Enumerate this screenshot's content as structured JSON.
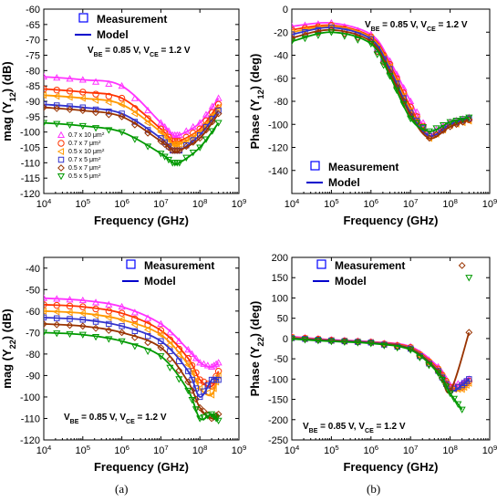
{
  "captions": [
    "(a)",
    "(b)"
  ],
  "colors": {
    "0.7 x 10": "#ff33ff",
    "0.7 x 7": "#ff3300",
    "0.5 x 10": "#ff9900",
    "0.7 x 5": "#3333cc",
    "0.5 x 7": "#993300",
    "0.5 x 5": "#009900",
    "measurement_legend": "#0000ff",
    "model_legend": "#0000cc"
  },
  "chart_data": [
    {
      "id": "mag_y12",
      "type": "line",
      "ylabel_main": "mag (Y",
      "ylabel_sub": "12",
      "ylabel_tail": ") (dB)",
      "xlabel": "Frequency (GHz)",
      "xscale": "log",
      "xlim": [
        10000,
        1000000000
      ],
      "ylim": [
        -120,
        -60
      ],
      "yticks": [
        -60,
        -65,
        -70,
        -75,
        -80,
        -85,
        -90,
        -95,
        -100,
        -105,
        -110,
        -115,
        -120
      ],
      "xticks": [
        {
          "base": "10",
          "exp": "4"
        },
        {
          "base": "10",
          "exp": "5"
        },
        {
          "base": "10",
          "exp": "6"
        },
        {
          "base": "10",
          "exp": "7"
        },
        {
          "base": "10",
          "exp": "8"
        },
        {
          "base": "10",
          "exp": "9"
        }
      ],
      "legend": {
        "measurement": "Measurement",
        "model": "Model"
      },
      "annotation": {
        "a": "V",
        "a_sub": "BE",
        "b": " = 0.85 V, V",
        "b_sub": "CE",
        "c": " = 1.2 V"
      },
      "series_legend": [
        {
          "label": "0.7 x 10 μm",
          "sup": "2"
        },
        {
          "label": "0.7 x 7 μm",
          "sup": "2"
        },
        {
          "label": "0.5 x 10 μm",
          "sup": "2"
        },
        {
          "label": "0.7 x 5 μm",
          "sup": "2"
        },
        {
          "label": "0.5 x 7 μm",
          "sup": "2"
        },
        {
          "label": "0.5 x 5 μm",
          "sup": "2"
        }
      ],
      "series": [
        {
          "label": "0.7 x 10 μm²",
          "marker": "triangle-up",
          "x": [
            10000,
            100000,
            1000000,
            10000000,
            20000000,
            30000000,
            100000000,
            300000000
          ],
          "y": [
            -82,
            -83,
            -85,
            -97,
            -101,
            -101,
            -97,
            -89
          ]
        },
        {
          "label": "0.7 x 7 μm²",
          "marker": "circle",
          "x": [
            10000,
            100000,
            1000000,
            10000000,
            20000000,
            30000000,
            100000000,
            300000000
          ],
          "y": [
            -86,
            -87,
            -89,
            -99,
            -103,
            -103,
            -99,
            -91
          ]
        },
        {
          "label": "0.5 x 10 μm²",
          "marker": "triangle-left",
          "x": [
            10000,
            100000,
            1000000,
            10000000,
            20000000,
            30000000,
            100000000,
            300000000
          ],
          "y": [
            -88,
            -89,
            -91,
            -100,
            -104,
            -104,
            -100,
            -92
          ]
        },
        {
          "label": "0.7 x 5 μm²",
          "marker": "square",
          "x": [
            10000,
            100000,
            1000000,
            10000000,
            20000000,
            30000000,
            100000000,
            300000000
          ],
          "y": [
            -91,
            -92,
            -94,
            -102,
            -106,
            -106,
            -101,
            -93
          ]
        },
        {
          "label": "0.5 x 7 μm²",
          "marker": "diamond",
          "x": [
            10000,
            100000,
            1000000,
            10000000,
            20000000,
            30000000,
            100000000,
            300000000
          ],
          "y": [
            -92,
            -93,
            -95,
            -103,
            -106,
            -106,
            -102,
            -94
          ]
        },
        {
          "label": "0.5 x 5 μm²",
          "marker": "triangle-down",
          "x": [
            10000,
            100000,
            1000000,
            10000000,
            20000000,
            30000000,
            100000000,
            300000000
          ],
          "y": [
            -97,
            -98,
            -100,
            -107,
            -110,
            -110,
            -105,
            -97
          ]
        }
      ]
    },
    {
      "id": "phase_y12",
      "type": "line",
      "ylabel_main": "Phase (Y",
      "ylabel_sub": "12",
      "ylabel_tail": ") (deg)",
      "xlabel": "Frequency (GHz)",
      "xscale": "log",
      "xlim": [
        10000,
        1000000000
      ],
      "ylim": [
        -160,
        0
      ],
      "yticks": [
        0,
        -20,
        -40,
        -60,
        -80,
        -100,
        -120,
        -140
      ],
      "xticks": [
        {
          "base": "10",
          "exp": "4"
        },
        {
          "base": "10",
          "exp": "5"
        },
        {
          "base": "10",
          "exp": "6"
        },
        {
          "base": "10",
          "exp": "7"
        },
        {
          "base": "10",
          "exp": "8"
        },
        {
          "base": "10",
          "exp": "9"
        }
      ],
      "legend": {
        "measurement": "Measurement",
        "model": "Model"
      },
      "annotation": {
        "a": "V",
        "a_sub": "BE",
        "b": " = 0.85 V, V",
        "b_sub": "CE",
        "c": " = 1.2 V"
      },
      "series": [
        {
          "label": "0.7 x 10 μm²",
          "marker": "triangle-up",
          "x": [
            10000,
            100000,
            1000000,
            3000000,
            10000000,
            30000000,
            100000000,
            300000000
          ],
          "y": [
            -15,
            -12,
            -22,
            -45,
            -80,
            -108,
            -98,
            -94
          ]
        },
        {
          "label": "0.7 x 7 μm²",
          "marker": "circle",
          "x": [
            10000,
            100000,
            1000000,
            3000000,
            10000000,
            30000000,
            100000000,
            300000000
          ],
          "y": [
            -18,
            -14,
            -24,
            -48,
            -85,
            -110,
            -100,
            -96
          ]
        },
        {
          "label": "0.5 x 10 μm²",
          "marker": "triangle-left",
          "x": [
            10000,
            100000,
            1000000,
            3000000,
            10000000,
            30000000,
            100000000,
            300000000
          ],
          "y": [
            -20,
            -15,
            -25,
            -50,
            -88,
            -112,
            -101,
            -97
          ]
        },
        {
          "label": "0.7 x 5 μm²",
          "marker": "square",
          "x": [
            10000,
            100000,
            1000000,
            3000000,
            10000000,
            30000000,
            100000000,
            300000000
          ],
          "y": [
            -22,
            -16,
            -26,
            -52,
            -90,
            -110,
            -100,
            -95
          ]
        },
        {
          "label": "0.5 x 7 μm²",
          "marker": "diamond",
          "x": [
            10000,
            100000,
            1000000,
            3000000,
            10000000,
            30000000,
            100000000,
            300000000
          ],
          "y": [
            -25,
            -18,
            -28,
            -55,
            -92,
            -112,
            -102,
            -96
          ]
        },
        {
          "label": "0.5 x 5 μm²",
          "marker": "triangle-down",
          "x": [
            10000,
            100000,
            1000000,
            3000000,
            10000000,
            30000000,
            100000000,
            300000000
          ],
          "y": [
            -28,
            -20,
            -30,
            -58,
            -95,
            -106,
            -98,
            -94
          ]
        }
      ]
    },
    {
      "id": "mag_y22",
      "type": "line",
      "ylabel_main": "mag (Y",
      "ylabel_sub": "22",
      "ylabel_tail": ") (dB)",
      "xlabel": "Frequency (GHz)",
      "xscale": "log",
      "xlim": [
        10000,
        1000000000
      ],
      "ylim": [
        -120,
        -35
      ],
      "yticks": [
        -40,
        -50,
        -60,
        -70,
        -80,
        -90,
        -100,
        -110,
        -120
      ],
      "xticks": [
        {
          "base": "10",
          "exp": "4"
        },
        {
          "base": "10",
          "exp": "5"
        },
        {
          "base": "10",
          "exp": "6"
        },
        {
          "base": "10",
          "exp": "7"
        },
        {
          "base": "10",
          "exp": "8"
        },
        {
          "base": "10",
          "exp": "9"
        }
      ],
      "legend": {
        "measurement": "Measurement",
        "model": "Model"
      },
      "annotation": {
        "a": "V",
        "a_sub": "BE",
        "b": " = 0.85 V, V",
        "b_sub": "CE",
        "c": " = 1.2 V"
      },
      "series": [
        {
          "label": "0.7 x 10 μm²",
          "marker": "triangle-up",
          "x": [
            10000,
            100000,
            1000000,
            10000000,
            50000000,
            100000000,
            200000000,
            300000000
          ],
          "y": [
            -54,
            -55,
            -58,
            -66,
            -78,
            -84,
            -86,
            -84
          ]
        },
        {
          "label": "0.7 x 7 μm²",
          "marker": "circle",
          "x": [
            10000,
            100000,
            1000000,
            10000000,
            50000000,
            100000000,
            200000000,
            300000000
          ],
          "y": [
            -57,
            -58,
            -61,
            -69,
            -82,
            -92,
            -95,
            -88
          ]
        },
        {
          "label": "0.5 x 10 μm²",
          "marker": "triangle-left",
          "x": [
            10000,
            100000,
            1000000,
            10000000,
            50000000,
            100000000,
            200000000,
            300000000
          ],
          "y": [
            -60,
            -61,
            -64,
            -71,
            -85,
            -96,
            -99,
            -90
          ]
        },
        {
          "label": "0.7 x 5 μm²",
          "marker": "square",
          "x": [
            10000,
            100000,
            1000000,
            10000000,
            50000000,
            100000000,
            200000000,
            300000000
          ],
          "y": [
            -63,
            -64,
            -67,
            -74,
            -88,
            -100,
            -92,
            -92
          ]
        },
        {
          "label": "0.5 x 7 μm²",
          "marker": "diamond",
          "x": [
            10000,
            100000,
            1000000,
            10000000,
            50000000,
            100000000,
            200000000,
            300000000
          ],
          "y": [
            -66,
            -67,
            -70,
            -77,
            -93,
            -105,
            -110,
            -108
          ]
        },
        {
          "label": "0.5 x 5 μm²",
          "marker": "triangle-down",
          "x": [
            10000,
            100000,
            1000000,
            10000000,
            50000000,
            100000000,
            200000000,
            300000000
          ],
          "y": [
            -70,
            -71,
            -74,
            -81,
            -97,
            -110,
            -108,
            -111
          ]
        }
      ]
    },
    {
      "id": "phase_y22",
      "type": "line",
      "ylabel_main": "Phase (Y",
      "ylabel_sub": "22",
      "ylabel_tail": ") (deg)",
      "xlabel": "Frequency (GHz)",
      "xscale": "log",
      "xlim": [
        10000,
        1000000000
      ],
      "ylim": [
        -250,
        200
      ],
      "yticks": [
        200,
        150,
        100,
        50,
        0,
        -50,
        -100,
        -150,
        -200,
        -250
      ],
      "xticks": [
        {
          "base": "10",
          "exp": "4"
        },
        {
          "base": "10",
          "exp": "5"
        },
        {
          "base": "10",
          "exp": "6"
        },
        {
          "base": "10",
          "exp": "7"
        },
        {
          "base": "10",
          "exp": "8"
        },
        {
          "base": "10",
          "exp": "9"
        }
      ],
      "legend": {
        "measurement": "Measurement",
        "model": "Model"
      },
      "annotation": {
        "a": "V",
        "a_sub": "BE",
        "b": " = 0.85 V, V",
        "b_sub": "CE",
        "c": " = 1.2 V"
      },
      "series": [
        {
          "label": "0.7 x 10 μm²",
          "marker": "triangle-up",
          "x": [
            10000,
            100000,
            1000000,
            10000000,
            50000000,
            100000000,
            200000000,
            300000000
          ],
          "y": [
            5,
            -3,
            -8,
            -20,
            -70,
            -115,
            -110,
            -100
          ]
        },
        {
          "label": "0.7 x 7 μm²",
          "marker": "circle",
          "x": [
            10000,
            100000,
            1000000,
            10000000,
            50000000,
            100000000,
            200000000,
            300000000
          ],
          "y": [
            3,
            -4,
            -9,
            -22,
            -75,
            -120,
            -120,
            -105
          ]
        },
        {
          "label": "0.5 x 10 μm²",
          "marker": "triangle-left",
          "x": [
            10000,
            100000,
            1000000,
            10000000,
            50000000,
            100000000,
            200000000,
            300000000
          ],
          "y": [
            2,
            -5,
            -10,
            -24,
            -78,
            -125,
            -125,
            -110
          ]
        },
        {
          "label": "0.7 x 5 μm²",
          "marker": "square",
          "x": [
            10000,
            100000,
            1000000,
            10000000,
            50000000,
            100000000,
            200000000,
            300000000
          ],
          "y": [
            1,
            -5,
            -10,
            -25,
            -80,
            -128,
            -115,
            -100
          ]
        },
        {
          "label": "0.5 x 7 μm²",
          "marker": "diamond",
          "x": [
            10000,
            100000,
            1000000,
            10000000,
            50000000,
            100000000,
            200000000,
            300000000
          ],
          "y": [
            0,
            -6,
            -11,
            -26,
            -82,
            -130,
            180,
            15
          ]
        },
        {
          "label": "0.5 x 5 μm²",
          "marker": "triangle-down",
          "x": [
            10000,
            100000,
            1000000,
            10000000,
            50000000,
            100000000,
            200000000,
            300000000
          ],
          "y": [
            -1,
            -7,
            -12,
            -28,
            -85,
            -135,
            -175,
            150
          ]
        }
      ]
    }
  ]
}
